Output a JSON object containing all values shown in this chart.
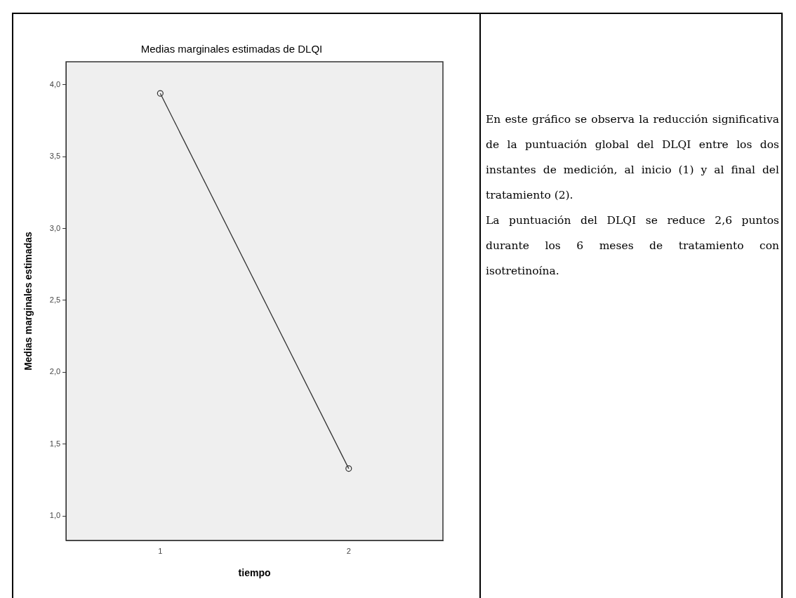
{
  "chart_data": {
    "type": "line",
    "title": "Medias marginales estimadas de DLQI",
    "xlabel": "tiempo",
    "ylabel": "Medias marginales estimadas",
    "categories": [
      "1",
      "2"
    ],
    "series": [
      {
        "color": "#333333",
        "values": [
          3.94,
          1.33
        ]
      }
    ],
    "ylim": [
      0.83,
      4.16
    ],
    "yticks": [
      {
        "value": 1.0,
        "label": "1,0"
      },
      {
        "value": 1.5,
        "label": "1,5"
      },
      {
        "value": 2.0,
        "label": "2,0"
      },
      {
        "value": 2.5,
        "label": "2,5"
      },
      {
        "value": 3.0,
        "label": "3,0"
      },
      {
        "value": 3.5,
        "label": "3,5"
      },
      {
        "value": 4.0,
        "label": "4,0"
      }
    ],
    "grid": false,
    "legend": false,
    "marker": "circle",
    "line_style": "solid",
    "annotations": [
      "En este gráfico se observa la reducción significativa de la puntuación global del DLQI entre los dos instantes de medición, al inicio (1) y al final del tratamiento (2).",
      "La puntuación del DLQI se reduce 2,6 puntos durante los 6 meses de tratamiento con isotretinoína."
    ]
  }
}
